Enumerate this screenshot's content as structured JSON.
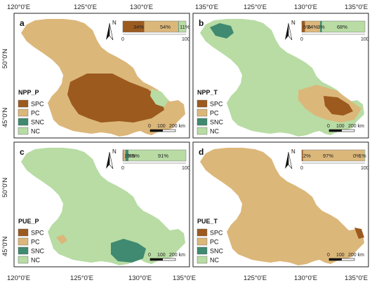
{
  "colors": {
    "SPC": "#9c5a1f",
    "PC": "#dcb77a",
    "SNC": "#3f8a70",
    "NC": "#b8dca4",
    "frame": "#222222",
    "water": "#ffffff"
  },
  "axes": {
    "top_labels": [
      "120°0'E",
      "125°0'E",
      "130°0'E",
      "135°0'E"
    ],
    "bottom_labels": [
      "120°0'E",
      "125°0'E",
      "130°0'E",
      "135°0'E"
    ],
    "left_labels": [
      "50°0'N",
      "45°0'N",
      "50°0'N",
      "45°0'N"
    ]
  },
  "north_label": "N",
  "panels": [
    {
      "letter": "a",
      "legend_title": "NPP_P",
      "legend": [
        "SPC",
        "PC",
        "SNC",
        "NC"
      ],
      "bar_percent_labels": [
        "34%",
        "54%",
        "11%"
      ],
      "bar_values": {
        "SPC": 34,
        "PC": 54,
        "SNC": 1,
        "NC": 11
      },
      "bar_axis": [
        "0",
        "100"
      ],
      "scale_labels": [
        "0",
        "100",
        "200 km"
      ],
      "dominant": "PC"
    },
    {
      "letter": "b",
      "legend_title": "NPP_T",
      "legend": [
        "SPC",
        "PC",
        "SNC",
        "NC"
      ],
      "bar_percent_labels": [
        "5%",
        "24%",
        "3%",
        "68%"
      ],
      "bar_values": {
        "SPC": 5,
        "PC": 24,
        "SNC": 3,
        "NC": 68
      },
      "bar_axis": [
        "0",
        "100"
      ],
      "scale_labels": [
        "0",
        "100",
        "200 km"
      ],
      "dominant": "NC"
    },
    {
      "letter": "c",
      "legend_title": "PUE_P",
      "legend": [
        "SPC",
        "PC",
        "SNC",
        "NC"
      ],
      "bar_percent_labels": [
        "1%",
        "3%",
        "5%",
        "91%"
      ],
      "bar_values": {
        "SPC": 1,
        "PC": 3,
        "SNC": 5,
        "NC": 91
      },
      "bar_axis": [
        "0",
        "100"
      ],
      "scale_labels": [
        "0",
        "100",
        "200 km"
      ],
      "dominant": "NC"
    },
    {
      "letter": "d",
      "legend_title": "PUE_T",
      "legend": [
        "SPC",
        "PC",
        "SNC",
        "NC"
      ],
      "bar_percent_labels": [
        "2%",
        "97%",
        "0%",
        "1%"
      ],
      "bar_values": {
        "SPC": 2,
        "PC": 97,
        "SNC": 0,
        "NC": 1
      },
      "bar_axis": [
        "0",
        "100"
      ],
      "scale_labels": [
        "0",
        "100",
        "200 km"
      ],
      "dominant": "PC"
    }
  ]
}
